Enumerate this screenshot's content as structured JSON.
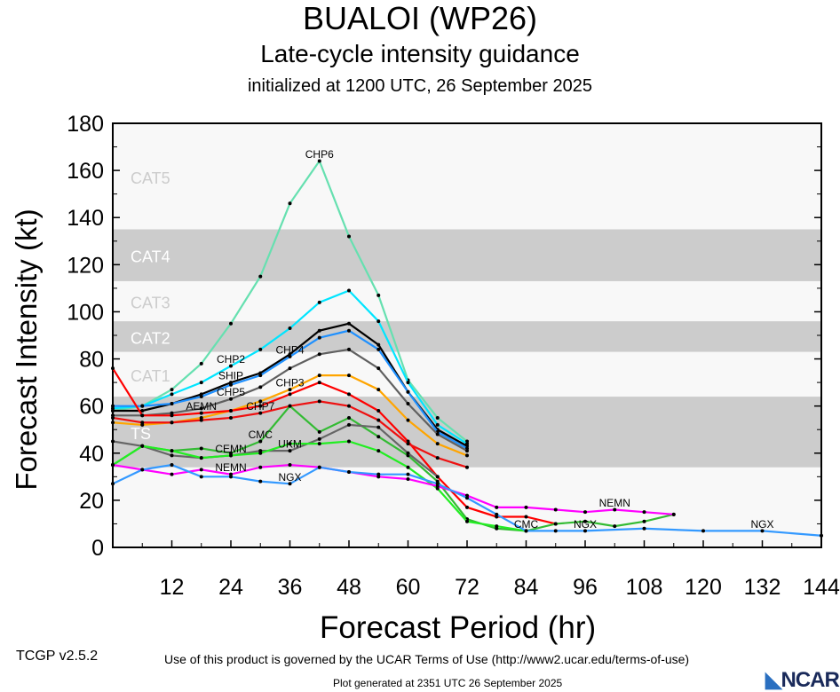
{
  "header": {
    "title": "BUALOI (WP26)",
    "subtitle": "Late-cycle intensity guidance",
    "init": "initialized at 1200 UTC, 26 September 2025"
  },
  "footer": {
    "version": "TCGP v2.5.2",
    "terms": "Use of this product is governed by the UCAR Terms of Use (http://www2.ucar.edu/terms-of-use)",
    "generated": "Plot generated at 2351 UTC   26 September 2025",
    "logo": "NCAR"
  },
  "chart_data": {
    "type": "line",
    "xlabel": "Forecast Period (hr)",
    "ylabel": "Forecast Intensity (kt)",
    "xlim": [
      0,
      144
    ],
    "ylim": [
      0,
      180
    ],
    "xticks": [
      12,
      24,
      36,
      48,
      60,
      72,
      84,
      96,
      108,
      120,
      132,
      144
    ],
    "yticks": [
      0,
      20,
      40,
      60,
      80,
      100,
      120,
      140,
      160,
      180
    ],
    "bands": [
      {
        "label": "TS",
        "min": 34,
        "max": 64,
        "fill": "#cccccc"
      },
      {
        "label": "CAT1",
        "min": 64,
        "max": 83,
        "fill": "#f8f8f8"
      },
      {
        "label": "CAT2",
        "min": 83,
        "max": 96,
        "fill": "#cccccc"
      },
      {
        "label": "CAT3",
        "min": 96,
        "max": 113,
        "fill": "#f8f8f8"
      },
      {
        "label": "CAT4",
        "min": 113,
        "max": 135,
        "fill": "#cccccc"
      },
      {
        "label": "CAT5",
        "min": 135,
        "max": 180,
        "fill": "#f8f8f8"
      }
    ],
    "series": [
      {
        "name": "CHP6",
        "color": "#66e0b0",
        "x": [
          0,
          6,
          12,
          18,
          24,
          30,
          36,
          42,
          48,
          54,
          60,
          66,
          72
        ],
        "y": [
          58,
          60,
          67,
          78,
          95,
          115,
          146,
          164,
          132,
          107,
          71,
          55,
          45
        ]
      },
      {
        "name": "CHP2",
        "color": "#00e5ff",
        "x": [
          0,
          6,
          12,
          18,
          24,
          30,
          36,
          42,
          48,
          54,
          60,
          66,
          72
        ],
        "y": [
          59,
          60,
          65,
          70,
          77,
          84,
          93,
          104,
          109,
          96,
          70,
          52,
          44
        ]
      },
      {
        "name": "SHIP",
        "color": "#000000",
        "x": [
          0,
          6,
          12,
          18,
          24,
          30,
          36,
          42,
          48,
          54,
          60,
          66,
          72
        ],
        "y": [
          58,
          58,
          61,
          65,
          70,
          74,
          82,
          92,
          95,
          86,
          66,
          50,
          43
        ]
      },
      {
        "name": "CHP4",
        "color": "#1e90ff",
        "x": [
          0,
          6,
          12,
          18,
          24,
          30,
          36,
          42,
          48,
          54,
          60,
          66,
          72
        ],
        "y": [
          60,
          60,
          61,
          64,
          69,
          73,
          81,
          89,
          92,
          84,
          66,
          49,
          42
        ]
      },
      {
        "name": "CHP5",
        "color": "#606060",
        "x": [
          0,
          6,
          12,
          18,
          24,
          30,
          36,
          42,
          48,
          54,
          60,
          66,
          72
        ],
        "y": [
          56,
          56,
          57,
          59,
          63,
          68,
          76,
          82,
          84,
          76,
          61,
          48,
          41
        ]
      },
      {
        "name": "CHP3",
        "color": "#ffa500",
        "x": [
          0,
          6,
          12,
          18,
          24,
          30,
          36,
          42,
          48,
          54,
          60,
          66,
          72
        ],
        "y": [
          53,
          52,
          53,
          55,
          58,
          62,
          67,
          73,
          73,
          67,
          54,
          44,
          39
        ]
      },
      {
        "name": "AEMN",
        "color": "#ff0000",
        "x": [
          0,
          6,
          12,
          18,
          24,
          30,
          36,
          42,
          48,
          54,
          60,
          66,
          72,
          78,
          84,
          90
        ],
        "y": [
          76,
          56,
          56,
          57,
          58,
          60,
          65,
          70,
          65,
          58,
          45,
          30,
          17,
          13,
          13,
          10
        ]
      },
      {
        "name": "CHP7",
        "color": "#ee1111",
        "x": [
          0,
          6,
          12,
          18,
          24,
          30,
          36,
          42,
          48,
          54,
          60,
          66,
          72
        ],
        "y": [
          55,
          53,
          53,
          54,
          55,
          57,
          60,
          62,
          60,
          54,
          44,
          38,
          34
        ]
      },
      {
        "name": "CMC",
        "color": "#33bb33",
        "x": [
          0,
          6,
          12,
          18,
          24,
          30,
          36,
          42,
          48,
          54,
          60,
          66,
          72,
          78,
          84,
          90,
          96,
          102,
          108,
          114
        ],
        "y": [
          35,
          43,
          41,
          42,
          40,
          45,
          60,
          49,
          55,
          47,
          39,
          28,
          12,
          8,
          7,
          10,
          11,
          9,
          11,
          14
        ]
      },
      {
        "name": "UKM",
        "color": "#666666",
        "x": [
          0,
          6,
          12,
          18,
          24,
          30,
          36,
          42,
          48,
          54,
          60,
          66
        ],
        "y": [
          45,
          43,
          39,
          38,
          39,
          41,
          41,
          46,
          52,
          51,
          40,
          30
        ]
      },
      {
        "name": "CEMN",
        "color": "#22ee22",
        "x": [
          0,
          6,
          12,
          18,
          24,
          30,
          36,
          42,
          48,
          54,
          60,
          66,
          72,
          78,
          84
        ],
        "y": [
          35,
          43,
          41,
          38,
          39,
          40,
          44,
          44,
          45,
          41,
          34,
          25,
          11,
          9,
          7
        ]
      },
      {
        "name": "NEMN",
        "color": "#ff00ff",
        "x": [
          0,
          6,
          12,
          18,
          24,
          30,
          36,
          42,
          48,
          54,
          60,
          66,
          72,
          78,
          84,
          90,
          96,
          102,
          108,
          114
        ],
        "y": [
          35,
          33,
          31,
          33,
          31,
          34,
          35,
          34,
          32,
          30,
          29,
          26,
          22,
          17,
          17,
          16,
          15,
          16,
          15,
          14
        ]
      },
      {
        "name": "NGX",
        "color": "#3399ff",
        "x": [
          0,
          6,
          12,
          18,
          24,
          30,
          36,
          42,
          48,
          54,
          60,
          66,
          72,
          78,
          84,
          90,
          96,
          108,
          120,
          132,
          144
        ],
        "y": [
          27,
          33,
          35,
          30,
          30,
          28,
          27,
          34,
          32,
          31,
          31,
          27,
          21,
          14,
          7,
          7,
          7,
          8,
          7,
          7,
          5
        ]
      }
    ]
  }
}
